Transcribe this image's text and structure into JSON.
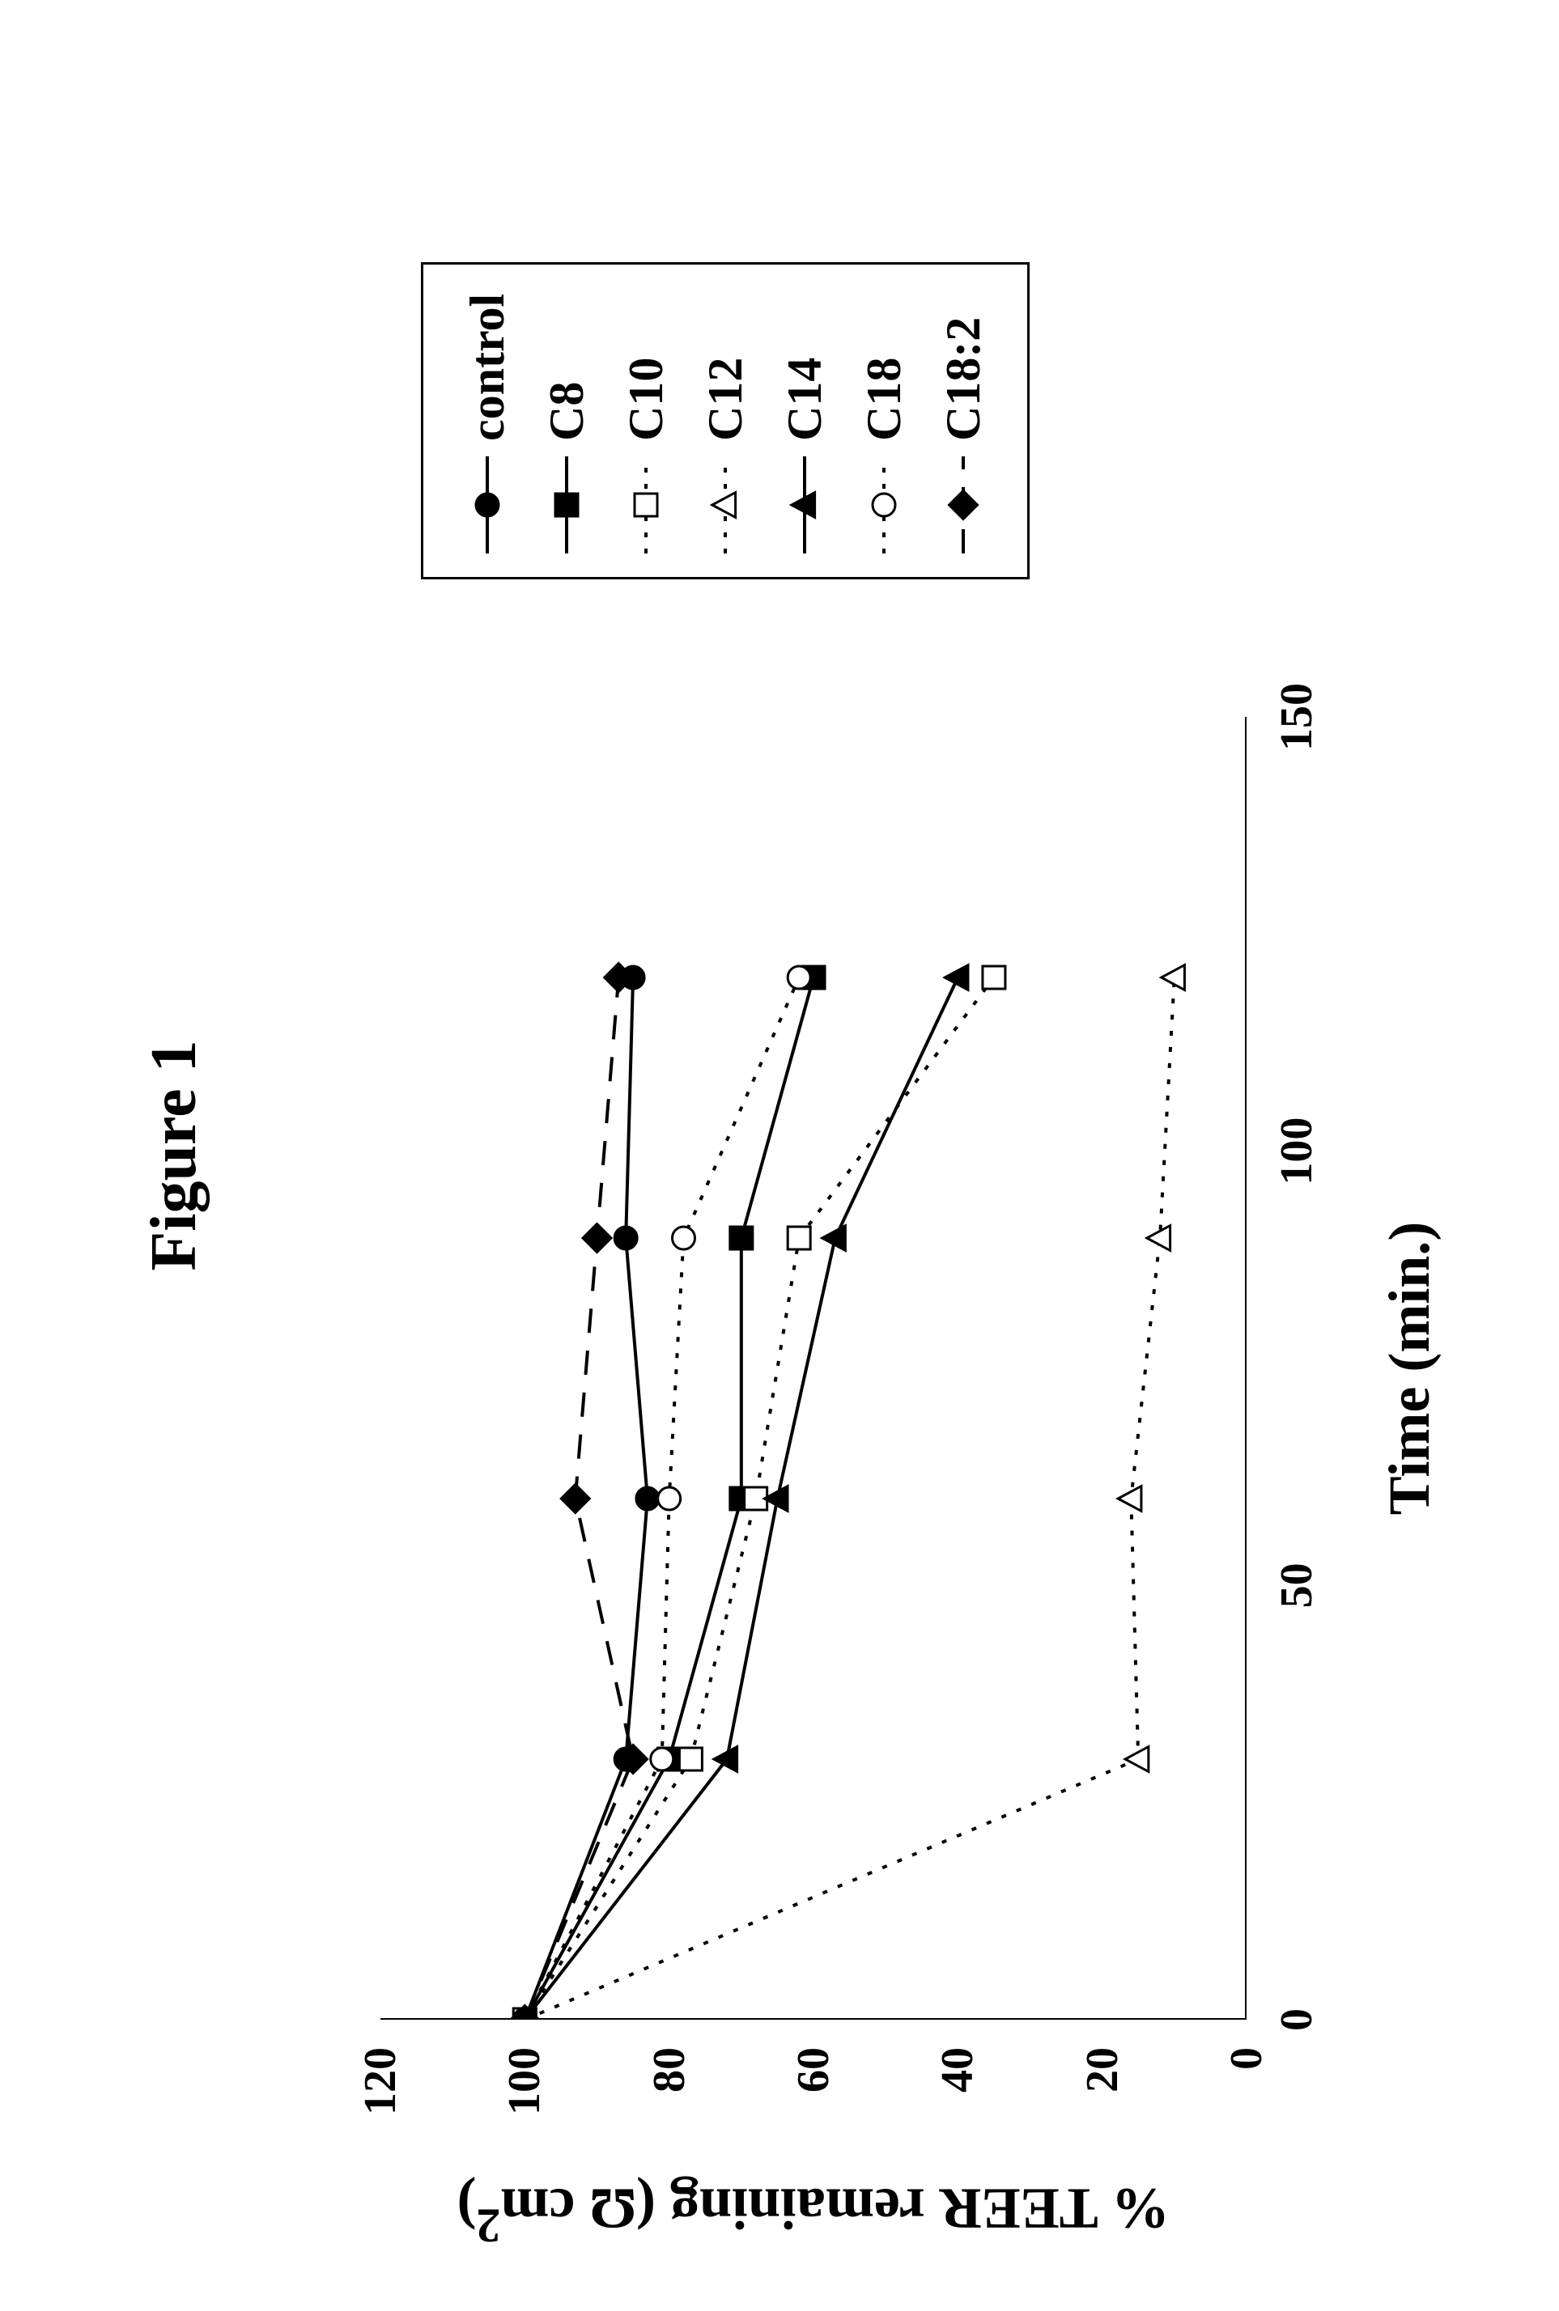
{
  "figure": {
    "title": "Figure 1",
    "title_fontsize": 80,
    "title_weight": "bold",
    "font_family": "Times New Roman",
    "background": "#ffffff",
    "axis_color": "#000000",
    "axis_line_width": 4,
    "tick_line_width": 3,
    "tick_outward_len": 20,
    "data_line_width": 4,
    "marker_size": 14,
    "marker_stroke_width": 3,
    "x_axis": {
      "label": "Time (min.)",
      "label_fontsize": 72,
      "label_weight": "bold",
      "min": 0,
      "max": 150,
      "ticks": [
        0,
        50,
        100,
        150
      ],
      "tick_fontsize": 56
    },
    "y_axis": {
      "label": "% TEER remaining (Ω cm²)",
      "label_html": "% TEER  remaining (&Omega; cm<sup>2</sup>)",
      "label_fontsize": 72,
      "label_weight": "bold",
      "min": 0,
      "max": 120,
      "ticks": [
        0,
        20,
        40,
        60,
        80,
        100,
        120
      ],
      "tick_fontsize": 56
    },
    "legend": {
      "border_color": "#000000",
      "border_width": 3,
      "background": "#ffffff",
      "text_fontsize": 60,
      "text_weight": "bold"
    },
    "series": [
      {
        "name": "control",
        "marker": "circle-filled",
        "color": "#000000",
        "fill": "#000000",
        "line_dash": "solid",
        "x": [
          0,
          30,
          60,
          90,
          120
        ],
        "y": [
          100,
          86,
          83,
          86,
          85
        ]
      },
      {
        "name": "C8",
        "marker": "square-filled",
        "color": "#000000",
        "fill": "#000000",
        "line_dash": "solid",
        "x": [
          0,
          30,
          60,
          90,
          120
        ],
        "y": [
          100,
          80,
          70,
          70,
          60
        ]
      },
      {
        "name": "C10",
        "marker": "square-open",
        "color": "#000000",
        "fill": "#ffffff",
        "line_dash": "dotted",
        "x": [
          0,
          30,
          60,
          90,
          120
        ],
        "y": [
          100,
          77,
          68,
          62,
          35
        ]
      },
      {
        "name": "C12",
        "marker": "triangle-open",
        "color": "#000000",
        "fill": "#ffffff",
        "line_dash": "dotted",
        "x": [
          0,
          30,
          60,
          90,
          120
        ],
        "y": [
          100,
          15,
          16,
          12,
          10
        ]
      },
      {
        "name": "C14",
        "marker": "triangle-filled",
        "color": "#000000",
        "fill": "#000000",
        "line_dash": "solid",
        "x": [
          0,
          30,
          60,
          90,
          120
        ],
        "y": [
          100,
          72,
          65,
          57,
          40
        ]
      },
      {
        "name": "C18",
        "marker": "circle-open",
        "color": "#000000",
        "fill": "#ffffff",
        "line_dash": "dotted",
        "x": [
          0,
          30,
          60,
          90,
          120
        ],
        "y": [
          100,
          81,
          80,
          78,
          62
        ]
      },
      {
        "name": "C18:2",
        "marker": "diamond-filled",
        "color": "#000000",
        "fill": "#000000",
        "line_dash": "dashed",
        "x": [
          0,
          30,
          60,
          90,
          120
        ],
        "y": [
          100,
          85,
          93,
          90,
          87
        ]
      }
    ]
  }
}
